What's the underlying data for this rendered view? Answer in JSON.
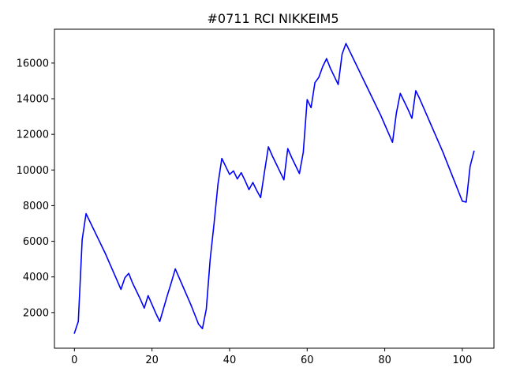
{
  "chart_data": {
    "type": "line",
    "title": "#0711 RCI NIKKEIM5",
    "xlabel": "",
    "ylabel": "",
    "xlim": [
      -5.15,
      108.15
    ],
    "ylim": [
      0,
      17900
    ],
    "x_ticks": [
      0,
      20,
      40,
      60,
      80,
      100
    ],
    "y_ticks": [
      2000,
      4000,
      6000,
      8000,
      10000,
      12000,
      14000,
      16000
    ],
    "grid": false,
    "legend": "none",
    "series": [
      {
        "color": "#0000ff",
        "x": [
          0,
          1,
          2,
          3,
          4,
          5,
          6,
          7,
          8,
          9,
          10,
          11,
          12,
          13,
          14,
          15,
          16,
          17,
          18,
          19,
          20,
          21,
          22,
          23,
          24,
          25,
          26,
          27,
          28,
          29,
          30,
          31,
          32,
          33,
          34,
          35,
          36,
          37,
          38,
          39,
          40,
          41,
          42,
          43,
          44,
          45,
          46,
          47,
          48,
          49,
          50,
          51,
          52,
          53,
          54,
          55,
          56,
          57,
          58,
          59,
          60,
          61,
          62,
          63,
          64,
          65,
          66,
          67,
          68,
          69,
          70,
          71,
          72,
          73,
          74,
          75,
          76,
          77,
          78,
          79,
          80,
          81,
          82,
          83,
          84,
          85,
          86,
          87,
          88,
          89,
          90,
          91,
          92,
          93,
          94,
          95,
          96,
          97,
          98,
          99,
          100,
          101,
          102,
          103
        ],
        "y": [
          850,
          1500,
          6100,
          7550,
          7100,
          6650,
          6200,
          5750,
          5300,
          4800,
          4300,
          3800,
          3300,
          3950,
          4200,
          3650,
          3200,
          2750,
          2250,
          2950,
          2450,
          1950,
          1500,
          2250,
          3000,
          3700,
          4450,
          3950,
          3450,
          2950,
          2450,
          1900,
          1350,
          1100,
          2200,
          5000,
          7000,
          9200,
          10650,
          10200,
          9750,
          9950,
          9500,
          9850,
          9400,
          8900,
          9300,
          8850,
          8450,
          9900,
          11300,
          10800,
          10350,
          9900,
          9450,
          11200,
          10700,
          10250,
          9800,
          11000,
          13950,
          13500,
          14900,
          15200,
          15800,
          16250,
          15700,
          15250,
          14800,
          16500,
          17100,
          16650,
          16200,
          15750,
          15300,
          14850,
          14400,
          13950,
          13500,
          13050,
          12550,
          12050,
          11550,
          13200,
          14300,
          13850,
          13400,
          12900,
          14450,
          14000,
          13500,
          13000,
          12500,
          12000,
          11500,
          11000,
          10450,
          9900,
          9350,
          8800,
          8250,
          8200,
          10200,
          11050
        ]
      }
    ]
  }
}
